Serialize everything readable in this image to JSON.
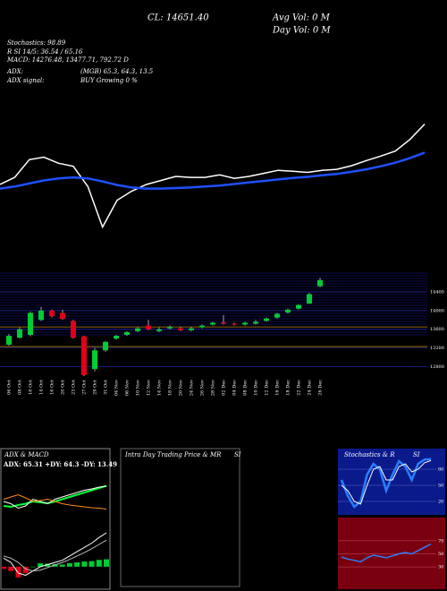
{
  "header": {
    "close": "CL: 14651.40",
    "avg_vol": "Avg Vol: 0  M",
    "day_vol": "Day Vol: 0  M",
    "stochastics": "Stochastics: 98.89",
    "rsi": "R        SI 14/5: 36.54 / 65.16",
    "macd": "MACD: 14276.48, 13477.71, 792.72  D",
    "adx": "ADX:",
    "adx_values": "(MGB) 65.3, 64.3, 13.5",
    "adx_signal": "ADX  signal:",
    "adx_signal_value": "BUY Growing 0 %"
  },
  "chart_data": [
    {
      "type": "line",
      "ylim": [
        11800,
        17100
      ],
      "series": [
        {
          "name": "Price",
          "color": "#ffffff",
          "values": [
            13460,
            13600,
            13950,
            14000,
            13880,
            13820,
            13420,
            12620,
            13150,
            13330,
            13460,
            13540,
            13620,
            13600,
            13600,
            13650,
            13580,
            13620,
            13680,
            13740,
            13720,
            13700,
            13740,
            13760,
            13830,
            13930,
            14020,
            14120,
            14350,
            14651.4
          ]
        },
        {
          "name": "MA",
          "color": "#1e50ff",
          "values": [
            13380,
            13420,
            13480,
            13540,
            13580,
            13600,
            13580,
            13520,
            13450,
            13400,
            13380,
            13380,
            13390,
            13400,
            13420,
            13440,
            13470,
            13500,
            13530,
            13560,
            13590,
            13610,
            13640,
            13670,
            13710,
            13760,
            13820,
            13890,
            13980,
            14090
          ]
        }
      ]
    },
    {
      "type": "candlestick",
      "ylim": [
        12600,
        14800
      ],
      "yticks": [
        12800,
        13200,
        13600,
        14000,
        14400
      ],
      "levels": [
        13650,
        13230
      ],
      "up_color": "#00cc33",
      "down_color": "#e0001a",
      "categories": [
        "06 Oct",
        "08 Oct",
        "10 Oct",
        "14 Oct",
        "16 Oct",
        "20 Oct",
        "23 Oct",
        "27 Oct",
        "29 Oct",
        "31 Oct",
        "04 Nov",
        "06 Nov",
        "10 Nov",
        "12 Nov",
        "14 Nov",
        "18 Nov",
        "20 Nov",
        "24 Nov",
        "26 Nov",
        "28 Nov",
        "02 Dec",
        "04 Dec",
        "08 Dec",
        "10 Dec",
        "12 Dec",
        "16 Dec",
        "18 Dec",
        "22 Dec",
        "24 Dec",
        "26 Dec"
      ],
      "open": [
        13270,
        13420,
        13480,
        13800,
        14000,
        13950,
        13780,
        13450,
        12750,
        13150,
        13400,
        13480,
        13560,
        13680,
        13560,
        13620,
        13620,
        13580,
        13640,
        13700,
        13750,
        13720,
        13700,
        13720,
        13780,
        13850,
        13960,
        14040,
        14150,
        14520
      ],
      "close": [
        13460,
        13600,
        13950,
        14000,
        13880,
        13820,
        13420,
        12620,
        13150,
        13330,
        13460,
        13540,
        13620,
        13600,
        13600,
        13650,
        13580,
        13620,
        13680,
        13740,
        13720,
        13700,
        13740,
        13760,
        13830,
        13930,
        14020,
        14120,
        14350,
        14651.4
      ],
      "high": [
        13500,
        13640,
        13980,
        14080,
        14020,
        14020,
        13800,
        13460,
        13200,
        13350,
        13480,
        13560,
        13640,
        13800,
        13640,
        13680,
        13650,
        13650,
        13700,
        13760,
        13900,
        13740,
        13760,
        13800,
        13850,
        13950,
        14040,
        14140,
        14380,
        14700
      ],
      "low": [
        13250,
        13400,
        13450,
        13780,
        13850,
        13800,
        13400,
        12600,
        12700,
        13120,
        13380,
        13460,
        13540,
        13580,
        13540,
        13600,
        13560,
        13560,
        13620,
        13680,
        13700,
        13680,
        13680,
        13700,
        13760,
        13830,
        13940,
        14020,
        14140,
        14500
      ]
    },
    {
      "type": "adx-macd",
      "title": "ADX  & MACD",
      "subtitle": "ADX: 65.31 +DY: 64.3 -DY: 13.49",
      "ylim": [
        0,
        100
      ],
      "macd_ylim": [
        -400,
        1000
      ],
      "series": [
        {
          "name": "ADX",
          "color": "#00ff33",
          "values": [
            20,
            18,
            22,
            25,
            30,
            28,
            26,
            30,
            35,
            40,
            45,
            50,
            55,
            60,
            65
          ]
        },
        {
          "name": "+DI",
          "color": "#ffffff",
          "values": [
            30,
            25,
            15,
            20,
            35,
            30,
            25,
            35,
            40,
            45,
            50,
            55,
            58,
            62,
            64
          ]
        },
        {
          "name": "-DI",
          "color": "#ff8c1a",
          "values": [
            35,
            40,
            45,
            38,
            30,
            32,
            35,
            30,
            25,
            22,
            20,
            18,
            16,
            15,
            13
          ]
        }
      ],
      "macd": [
        200,
        100,
        -150,
        -200,
        -100,
        0,
        50,
        100,
        150,
        250,
        350,
        450,
        550,
        680,
        792
      ],
      "signal": [
        250,
        200,
        100,
        -50,
        -100,
        -80,
        -20,
        40,
        100,
        170,
        250,
        330,
        420,
        520,
        620
      ],
      "histogram": [
        -50,
        -100,
        -250,
        -150,
        0,
        80,
        70,
        60,
        50,
        80,
        100,
        120,
        130,
        160,
        172
      ]
    },
    {
      "type": "intraday",
      "title": "Intra  Day Trading Price  & MR",
      "title2": "SI"
    },
    {
      "type": "stoch-rsi",
      "title": "Stochastics & R",
      "title2": "SI",
      "ylim": [
        0,
        100
      ],
      "yticks": [
        80,
        50,
        20
      ],
      "rsi_yticks": [
        70,
        50,
        30
      ],
      "series": [
        {
          "name": "%K",
          "color": "#2a7fff",
          "values": [
            60,
            30,
            10,
            20,
            70,
            90,
            80,
            40,
            70,
            95,
            85,
            60,
            90,
            98,
            98.89
          ]
        },
        {
          "name": "%D",
          "color": "#ffffff",
          "values": [
            50,
            40,
            20,
            15,
            50,
            80,
            85,
            60,
            60,
            85,
            90,
            75,
            80,
            92,
            96
          ]
        }
      ],
      "rsi": {
        "name": "RSI",
        "color": "#2a7fff",
        "values": [
          45,
          42,
          40,
          38,
          44,
          48,
          46,
          44,
          47,
          50,
          52,
          50,
          55,
          60,
          65
        ]
      }
    }
  ]
}
